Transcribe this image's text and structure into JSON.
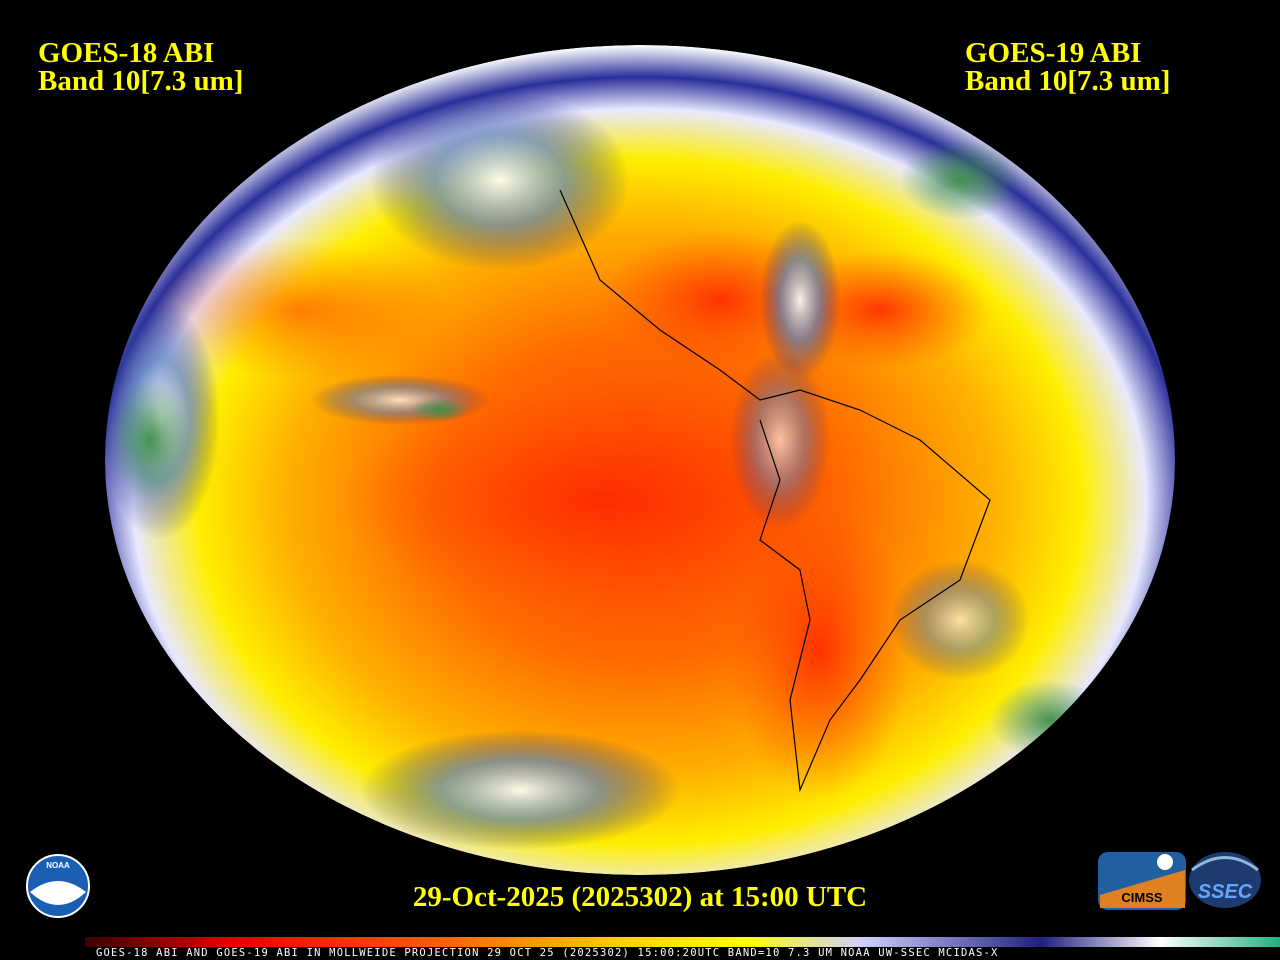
{
  "header": {
    "left": {
      "satellite": "GOES-18 ABI",
      "band": "Band 10[7.3 um]"
    },
    "right": {
      "satellite": "GOES-19 ABI",
      "band": "Band 10[7.3 um]"
    }
  },
  "timestamp": "29-Oct-2025 (2025302) at 15:00 UTC",
  "footer_strip": "GOES-18 ABI AND GOES-19 ABI IN MOLLWEIDE PROJECTION 29 OCT 25 (2025302) 15:00:20UTC BAND=10 7.3 UM NOAA UW-SSEC MCIDAS-X",
  "logos": {
    "noaa": "NOAA",
    "cimss": "CIMSS",
    "ssec": "SSEC"
  }
}
